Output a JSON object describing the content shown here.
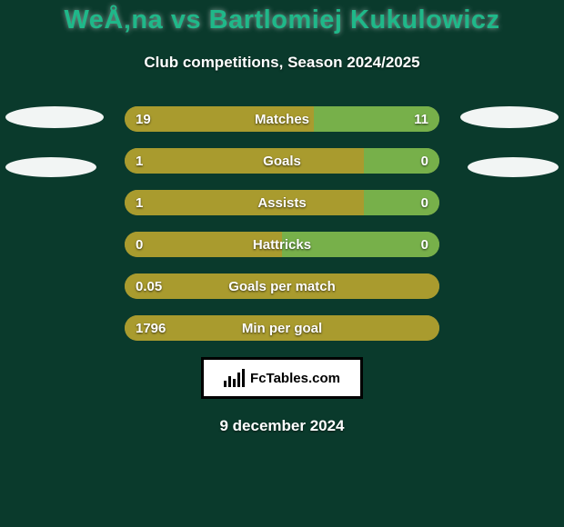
{
  "background_color": "#0a3a2c",
  "title": {
    "player1": "WeÅ‚na",
    "vs": " vs ",
    "player2": "Bartlomiej Kukulowicz",
    "color": "#1fb889",
    "fontsize": 29
  },
  "subtitle": "Club competitions, Season 2024/2025",
  "left_bar_color": "#a99b2e",
  "right_bar_color": "#77b04a",
  "track_color": "#8a8a40",
  "text_color": "#ffffff",
  "ellipse_color": "#ffffff",
  "ellipses_left": [
    {
      "w": 108,
      "h": 24
    },
    {
      "w": 100,
      "h": 22
    }
  ],
  "ellipses_right": [
    {
      "w": 108,
      "h": 24
    },
    {
      "w": 100,
      "h": 22
    }
  ],
  "rows": [
    {
      "label": "Matches",
      "left_val": "19",
      "right_val": "11",
      "left_pct": 60,
      "right_pct": 40
    },
    {
      "label": "Goals",
      "left_val": "1",
      "right_val": "0",
      "left_pct": 76,
      "right_pct": 24
    },
    {
      "label": "Assists",
      "left_val": "1",
      "right_val": "0",
      "left_pct": 76,
      "right_pct": 24
    },
    {
      "label": "Hattricks",
      "left_val": "0",
      "right_val": "0",
      "left_pct": 50,
      "right_pct": 50
    },
    {
      "label": "Goals per match",
      "left_val": "0.05",
      "right_val": "",
      "left_pct": 100,
      "right_pct": 0
    },
    {
      "label": "Min per goal",
      "left_val": "1796",
      "right_val": "",
      "left_pct": 100,
      "right_pct": 0
    }
  ],
  "watermark": "FcTables.com",
  "dateline": "9 december 2024"
}
